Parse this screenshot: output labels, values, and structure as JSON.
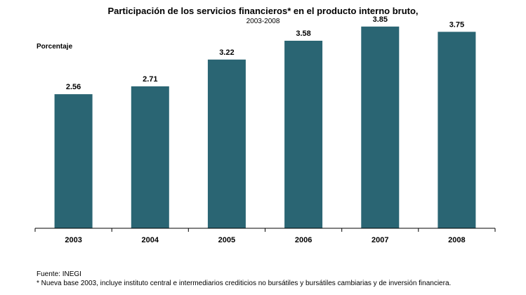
{
  "chart_data": {
    "type": "bar",
    "title": "Participación de los servicios financieros* en el producto interno bruto,",
    "subtitle": "2003-2008",
    "ylabel": "Porcentaje",
    "xlabel": "",
    "categories": [
      "2003",
      "2004",
      "2005",
      "2006",
      "2007",
      "2008"
    ],
    "values": [
      2.56,
      2.71,
      3.22,
      3.58,
      3.85,
      3.75
    ],
    "value_labels": [
      "2.56",
      "2.71",
      "3.22",
      "3.58",
      "3.85",
      "3.75"
    ],
    "ylim": [
      0,
      4.25
    ],
    "grid": false,
    "legend": "none",
    "bar_color": "#2a6573"
  },
  "footer": {
    "source": "Fuente: INEGI",
    "note": "* Nueva base 2003, incluye instituto central e intermediarios crediticios no bursátiles y bursátiles cambiarias y de inversión financiera."
  }
}
